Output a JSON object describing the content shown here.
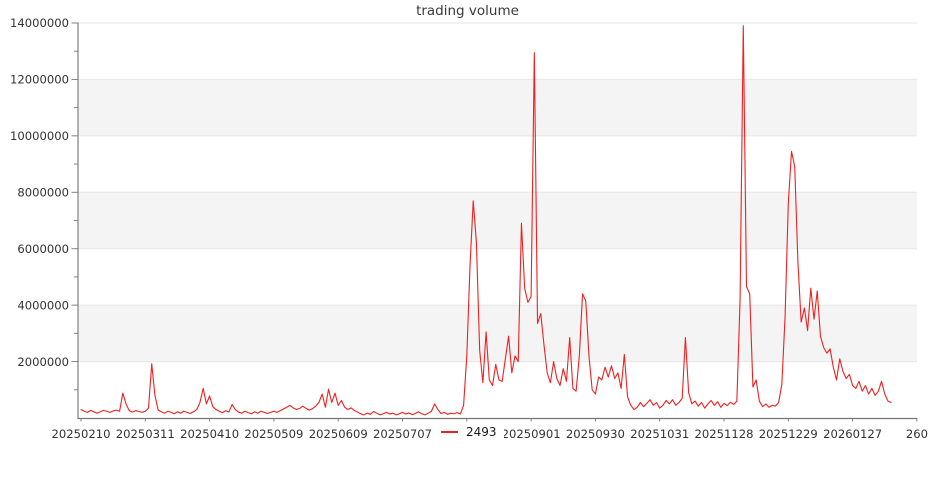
{
  "title": "trading volume",
  "legend": {
    "label": "2493"
  },
  "colors": {
    "line": "#ee2121",
    "band": "#f4f4f4",
    "grid": "#e6e6e6",
    "axis": "#757575",
    "tick_text": "#333333",
    "title_text": "#3a3a3a"
  },
  "chart_data": {
    "type": "line",
    "title": "trading volume",
    "xlabel": "",
    "ylabel": "",
    "ylim": [
      0,
      14000000
    ],
    "grid": "alternating horizontal bands every 2000000",
    "legend_position": "below axis, center, overlapping x tick labels",
    "x_axis": {
      "tick_labels": [
        "20250210",
        "20250311",
        "20250410",
        "20250509",
        "20250609",
        "20250707",
        "",
        "20250901",
        "20250930",
        "20251031",
        "20251128",
        "20251229",
        "20260127",
        "260"
      ],
      "note_visible_only": "seventh tick label hidden behind legend; last label shows truncated text 260 at right edge",
      "points_per_tick": 20
    },
    "y_axis": {
      "tick_values": [
        2000000,
        4000000,
        6000000,
        8000000,
        10000000,
        12000000,
        14000000
      ],
      "minor_tick_step": 1000000
    },
    "series": [
      {
        "name": "2493",
        "color": "#ee2121",
        "values": [
          300000,
          240000,
          200000,
          270000,
          220000,
          170000,
          220000,
          270000,
          240000,
          200000,
          250000,
          280000,
          240000,
          880000,
          500000,
          260000,
          210000,
          260000,
          230000,
          200000,
          240000,
          350000,
          1920000,
          800000,
          280000,
          220000,
          170000,
          240000,
          200000,
          150000,
          220000,
          170000,
          240000,
          200000,
          160000,
          220000,
          300000,
          550000,
          1050000,
          500000,
          780000,
          400000,
          300000,
          240000,
          190000,
          260000,
          210000,
          480000,
          300000,
          210000,
          170000,
          240000,
          190000,
          150000,
          220000,
          170000,
          240000,
          200000,
          160000,
          200000,
          240000,
          200000,
          260000,
          320000,
          380000,
          450000,
          360000,
          300000,
          340000,
          420000,
          340000,
          280000,
          330000,
          420000,
          550000,
          850000,
          380000,
          1020000,
          550000,
          880000,
          450000,
          620000,
          380000,
          300000,
          360000,
          270000,
          210000,
          150000,
          110000,
          170000,
          130000,
          230000,
          170000,
          110000,
          150000,
          200000,
          140000,
          170000,
          110000,
          150000,
          200000,
          140000,
          180000,
          120000,
          160000,
          220000,
          150000,
          110000,
          170000,
          240000,
          500000,
          300000,
          160000,
          200000,
          130000,
          170000,
          150000,
          190000,
          140000,
          450000,
          2200000,
          5400000,
          7700000,
          6200000,
          2400000,
          1250000,
          3050000,
          1350000,
          1150000,
          1900000,
          1350000,
          1300000,
          2100000,
          2900000,
          1600000,
          2200000,
          2000000,
          6900000,
          4600000,
          4100000,
          4300000,
          12950000,
          3350000,
          3700000,
          2600000,
          1600000,
          1250000,
          2000000,
          1400000,
          1150000,
          1750000,
          1300000,
          2850000,
          1050000,
          950000,
          2200000,
          4400000,
          4150000,
          2200000,
          1000000,
          850000,
          1450000,
          1350000,
          1800000,
          1450000,
          1850000,
          1400000,
          1600000,
          1050000,
          2250000,
          750000,
          450000,
          300000,
          380000,
          550000,
          400000,
          520000,
          650000,
          450000,
          550000,
          350000,
          450000,
          620000,
          500000,
          650000,
          450000,
          550000,
          700000,
          2850000,
          900000,
          500000,
          600000,
          420000,
          550000,
          350000,
          500000,
          620000,
          450000,
          580000,
          380000,
          520000,
          440000,
          560000,
          480000,
          600000,
          4200000,
          13900000,
          4650000,
          4400000,
          1100000,
          1350000,
          600000,
          400000,
          500000,
          380000,
          450000,
          420000,
          550000,
          1200000,
          3600000,
          7600000,
          9450000,
          8900000,
          5500000,
          3400000,
          3900000,
          3100000,
          4600000,
          3500000,
          4500000,
          2900000,
          2500000,
          2300000,
          2450000,
          1800000,
          1350000,
          2100000,
          1650000,
          1400000,
          1550000,
          1150000,
          1050000,
          1300000,
          950000,
          1150000,
          850000,
          1050000,
          800000,
          950000,
          1300000,
          850000,
          600000,
          550000
        ]
      }
    ]
  }
}
